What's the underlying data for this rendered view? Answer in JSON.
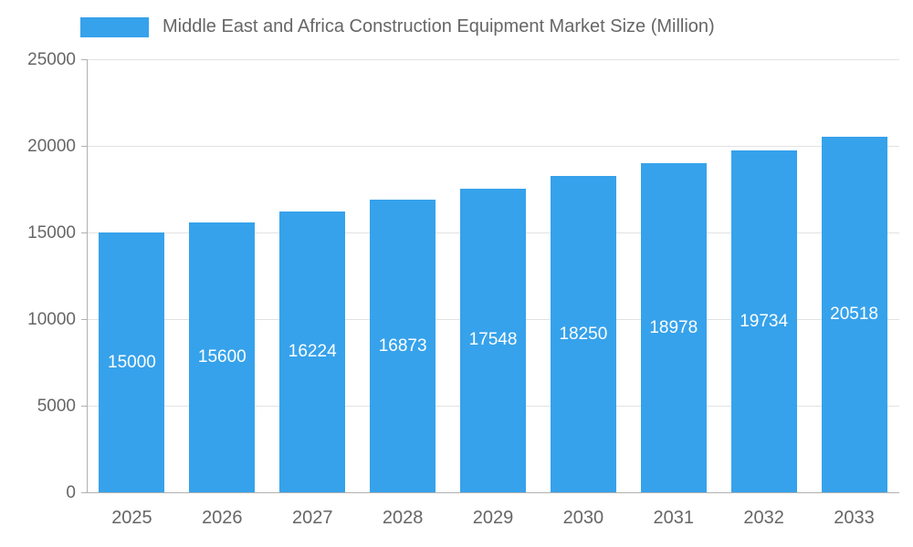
{
  "chart_data": {
    "type": "bar",
    "title": "Middle East and Africa Construction Equipment Market Size (Million)",
    "categories": [
      "2025",
      "2026",
      "2027",
      "2028",
      "2029",
      "2030",
      "2031",
      "2032",
      "2033"
    ],
    "values": [
      15000,
      15600,
      16224,
      16873,
      17548,
      18250,
      18978,
      19734,
      20518
    ],
    "xlabel": "",
    "ylabel": "",
    "ylim": [
      0,
      25000
    ],
    "yticks": [
      0,
      5000,
      10000,
      15000,
      20000,
      25000
    ],
    "grid": true,
    "legend_position": "top",
    "colors": {
      "bar": "#36A2EB",
      "bar_label_text": "#ffffff",
      "axis_text": "#666666",
      "gridline": "#e2e2e2",
      "axis_line": "#b0b0b0",
      "background": "#ffffff"
    }
  }
}
